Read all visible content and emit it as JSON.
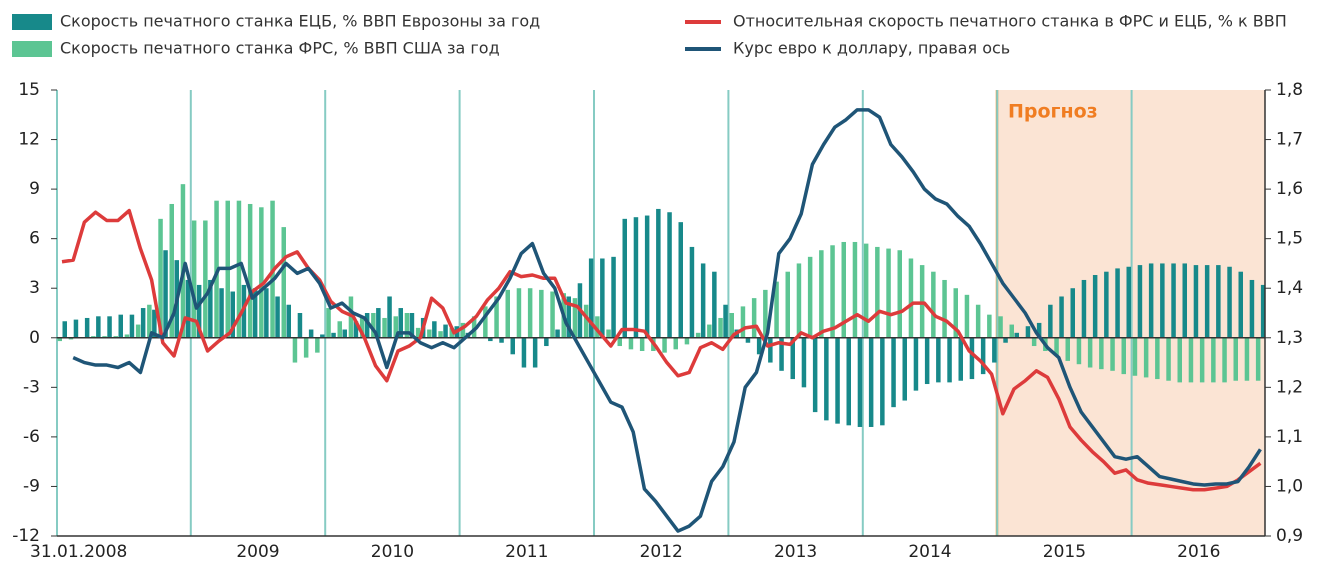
{
  "chart_data": {
    "type": "combo",
    "annotation": "Прогноз",
    "categories": [
      "31.01.2008",
      null,
      null,
      null,
      null,
      null,
      null,
      null,
      null,
      null,
      null,
      null,
      null,
      null,
      null,
      null,
      null,
      null,
      "2009",
      null,
      null,
      null,
      null,
      null,
      null,
      null,
      null,
      null,
      null,
      null,
      "2010",
      null,
      null,
      null,
      null,
      null,
      null,
      null,
      null,
      null,
      null,
      null,
      "2011",
      null,
      null,
      null,
      null,
      null,
      null,
      null,
      null,
      null,
      null,
      null,
      "2012",
      null,
      null,
      null,
      null,
      null,
      null,
      null,
      null,
      null,
      null,
      null,
      "2013",
      null,
      null,
      null,
      null,
      null,
      null,
      null,
      null,
      null,
      null,
      null,
      "2014",
      null,
      null,
      null,
      null,
      null,
      null,
      null,
      null,
      null,
      null,
      null,
      "2015",
      null,
      null,
      null,
      null,
      null,
      null,
      null,
      null,
      null,
      null,
      null,
      "2016",
      null,
      null,
      null,
      null,
      null
    ],
    "ylim": [
      -12,
      15
    ],
    "yticks": [
      15,
      12,
      9,
      6,
      3,
      0,
      -3,
      -6,
      -9,
      -12
    ],
    "y2lim": [
      0.9,
      1.8
    ],
    "y2ticks": [
      {
        "value": 1.8,
        "label": "1,8"
      },
      {
        "value": 1.7,
        "label": "1,7"
      },
      {
        "value": 1.6,
        "label": "1,6"
      },
      {
        "value": 1.5,
        "label": "1,5"
      },
      {
        "value": 1.4,
        "label": "1,4"
      },
      {
        "value": 1.3,
        "label": "1,3"
      },
      {
        "value": 1.2,
        "label": "1,2"
      },
      {
        "value": 1.1,
        "label": "1,1"
      },
      {
        "value": 1.0,
        "label": "1,0"
      },
      {
        "value": 0.9,
        "label": "0,9"
      }
    ],
    "series": [
      {
        "name": "Скорость печатного станка ЕЦБ, % ВВП Еврозоны за год",
        "type": "bar",
        "color": "#17898a",
        "values": [
          1.0,
          1.1,
          1.2,
          1.3,
          1.3,
          1.4,
          1.4,
          1.8,
          1.7,
          5.3,
          4.7,
          3.5,
          3.2,
          3.5,
          3.0,
          2.8,
          3.2,
          3.0,
          3.0,
          2.5,
          2.0,
          1.5,
          0.5,
          0.2,
          0.3,
          0.5,
          1.0,
          1.5,
          1.8,
          2.5,
          1.8,
          1.5,
          1.2,
          1.0,
          0.8,
          0.7,
          0.3,
          0.0,
          -0.2,
          -0.3,
          -1.0,
          -1.8,
          -1.8,
          -0.5,
          0.5,
          2.5,
          3.3,
          4.8,
          4.8,
          4.9,
          7.2,
          7.3,
          7.4,
          7.8,
          7.6,
          7.0,
          5.5,
          4.5,
          4.0,
          2.0,
          0.5,
          -0.3,
          -1.0,
          -1.5,
          -2.0,
          -2.5,
          -3.0,
          -4.5,
          -5.0,
          -5.2,
          -5.3,
          -5.4,
          -5.4,
          -5.3,
          -4.2,
          -3.8,
          -3.2,
          -2.8,
          -2.7,
          -2.7,
          -2.6,
          -2.5,
          -2.2,
          -1.5,
          -0.3,
          0.3,
          0.7,
          0.9,
          2.0,
          2.5,
          3.0,
          3.5,
          3.8,
          4.0,
          4.2,
          4.3,
          4.4,
          4.5,
          4.5,
          4.5,
          4.5,
          4.4,
          4.4,
          4.4,
          4.3,
          4.0,
          3.5,
          3.2
        ]
      },
      {
        "name": "Скорость печатного станка ФРС, % ВВП США за год",
        "type": "bar",
        "color": "#5cc593",
        "values": [
          -0.2,
          -0.1,
          0,
          0.1,
          0.1,
          0.1,
          0.2,
          0.8,
          2.0,
          7.2,
          8.1,
          9.3,
          7.1,
          7.1,
          8.3,
          8.3,
          8.3,
          8.1,
          7.9,
          8.3,
          6.7,
          -1.5,
          -1.2,
          -0.9,
          1.8,
          1.0,
          2.5,
          1.3,
          1.5,
          1.2,
          1.3,
          1.5,
          0.6,
          0.5,
          0.4,
          0.6,
          0.9,
          1.3,
          1.9,
          2.5,
          2.9,
          3.0,
          3.0,
          2.9,
          2.8,
          2.7,
          2.4,
          2.0,
          1.3,
          0.5,
          -0.5,
          -0.7,
          -0.8,
          -0.8,
          -0.9,
          -0.7,
          -0.4,
          0.3,
          0.8,
          1.2,
          1.5,
          1.9,
          2.4,
          2.9,
          3.4,
          4.0,
          4.5,
          4.9,
          5.3,
          5.6,
          5.8,
          5.8,
          5.7,
          5.5,
          5.4,
          5.3,
          4.8,
          4.4,
          4.0,
          3.5,
          3.0,
          2.6,
          2.0,
          1.4,
          1.3,
          0.8,
          0,
          -0.5,
          -0.8,
          -1.1,
          -1.4,
          -1.6,
          -1.8,
          -1.9,
          -2.0,
          -2.2,
          -2.3,
          -2.4,
          -2.5,
          -2.6,
          -2.7,
          -2.7,
          -2.7,
          -2.7,
          -2.7,
          -2.6,
          -2.6,
          -2.6
        ]
      },
      {
        "name": "Относительная скорость печатного станка в ФРС и ЕЦБ, % к ВВП",
        "type": "line",
        "color": "#dd3b3b",
        "values": [
          4.6,
          4.7,
          7.0,
          7.6,
          7.1,
          7.1,
          7.7,
          5.4,
          3.5,
          -0.3,
          -1.1,
          1.2,
          1.0,
          -0.8,
          -0.2,
          0.3,
          1.5,
          2.8,
          3.3,
          4.2,
          4.9,
          5.2,
          4.2,
          3.5,
          2.2,
          1.6,
          1.3,
          0,
          -1.7,
          -2.6,
          -0.8,
          -0.5,
          0,
          2.4,
          1.8,
          0.3,
          0.7,
          1.3,
          2.3,
          3.0,
          4.0,
          3.7,
          3.8,
          3.6,
          3.6,
          2.1,
          1.9,
          1.1,
          0.3,
          -0.5,
          0.5,
          0.5,
          0.4,
          -0.5,
          -1.5,
          -2.3,
          -2.1,
          -0.6,
          -0.3,
          -0.7,
          0.2,
          0.6,
          0.7,
          -0.5,
          -0.3,
          -0.4,
          0.3,
          0.0,
          0.4,
          0.6,
          1.0,
          1.4,
          1.0,
          1.6,
          1.4,
          1.6,
          2.1,
          2.1,
          1.3,
          1.0,
          0.4,
          -0.8,
          -1.4,
          -2.2,
          -4.6,
          -3.1,
          -2.6,
          -2.0,
          -2.4,
          -3.7,
          -5.4,
          -6.2,
          -6.9,
          -7.5,
          -8.2,
          -8.0,
          -8.6,
          -8.8,
          -8.9,
          -9.0,
          -9.1,
          -9.2,
          -9.2,
          -9.1,
          -9.0,
          -8.6,
          -8.1,
          -7.6
        ]
      },
      {
        "name": "Курс евро к доллару, правая ось",
        "type": "line",
        "axis": "y2",
        "color": "#1f5577",
        "values": [
          null,
          1.26,
          1.25,
          1.245,
          1.245,
          1.24,
          1.25,
          1.23,
          1.31,
          1.3,
          1.35,
          1.45,
          1.36,
          1.39,
          1.44,
          1.44,
          1.45,
          1.38,
          1.4,
          1.42,
          1.45,
          1.43,
          1.44,
          1.41,
          1.36,
          1.37,
          1.35,
          1.34,
          1.31,
          1.24,
          1.31,
          1.31,
          1.29,
          1.28,
          1.29,
          1.28,
          1.3,
          1.32,
          1.35,
          1.38,
          1.42,
          1.47,
          1.49,
          1.43,
          1.4,
          1.33,
          1.29,
          1.25,
          1.21,
          1.17,
          1.16,
          1.11,
          0.995,
          0.97,
          0.94,
          0.91,
          0.92,
          0.94,
          1.01,
          1.04,
          1.09,
          1.2,
          1.23,
          1.31,
          1.47,
          1.5,
          1.55,
          1.65,
          1.69,
          1.725,
          1.74,
          1.76,
          1.76,
          1.745,
          1.69,
          1.665,
          1.635,
          1.6,
          1.58,
          1.57,
          1.545,
          1.525,
          1.49,
          1.45,
          1.41,
          1.38,
          1.35,
          1.31,
          1.28,
          1.26,
          1.2,
          1.15,
          1.12,
          1.09,
          1.06,
          1.055,
          1.06,
          1.04,
          1.02,
          1.015,
          1.01,
          1.005,
          1.003,
          1.005,
          1.005,
          1.01,
          1.04,
          1.075
        ]
      }
    ]
  }
}
